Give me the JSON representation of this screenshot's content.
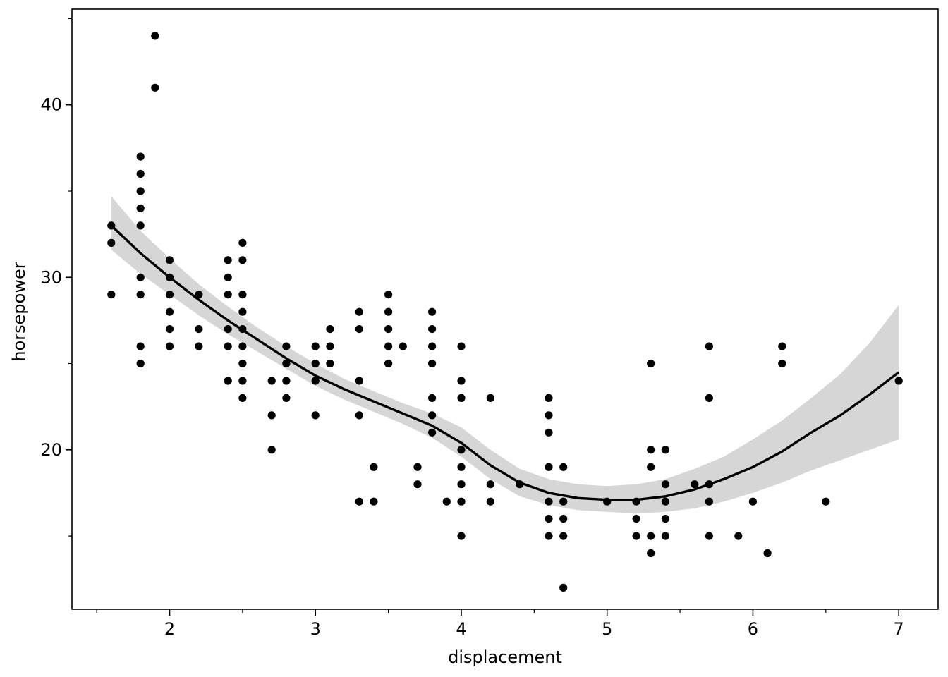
{
  "chart_data": {
    "type": "scatter",
    "title": "",
    "xlabel": "displacement",
    "ylabel": "horsepower",
    "xlim": [
      1.33,
      7.27
    ],
    "ylim": [
      10.75,
      45.55
    ],
    "x_ticks": [
      2,
      3,
      4,
      5,
      6,
      7
    ],
    "y_ticks": [
      20,
      30,
      40
    ],
    "x_minor_ticks": [
      1.5,
      2.5,
      3.5,
      4.5,
      5.5,
      6.5
    ],
    "y_minor_ticks": [
      15,
      25,
      35,
      45
    ],
    "grid": false,
    "legend": "none",
    "colors": {
      "points": "#000000",
      "line": "#000000",
      "band": "#d6d6d6"
    },
    "points": [
      [
        1.6,
        33
      ],
      [
        1.6,
        32
      ],
      [
        1.6,
        29
      ],
      [
        1.8,
        37
      ],
      [
        1.8,
        36
      ],
      [
        1.8,
        35
      ],
      [
        1.8,
        34
      ],
      [
        1.8,
        33
      ],
      [
        1.8,
        30
      ],
      [
        1.8,
        29
      ],
      [
        1.8,
        26
      ],
      [
        1.8,
        25
      ],
      [
        1.9,
        44
      ],
      [
        1.9,
        41
      ],
      [
        2.0,
        31
      ],
      [
        2.0,
        30
      ],
      [
        2.0,
        29
      ],
      [
        2.0,
        28
      ],
      [
        2.0,
        27
      ],
      [
        2.0,
        26
      ],
      [
        2.2,
        29
      ],
      [
        2.2,
        27
      ],
      [
        2.2,
        26
      ],
      [
        2.4,
        31
      ],
      [
        2.4,
        30
      ],
      [
        2.4,
        29
      ],
      [
        2.4,
        27
      ],
      [
        2.4,
        26
      ],
      [
        2.4,
        24
      ],
      [
        2.5,
        32
      ],
      [
        2.5,
        31
      ],
      [
        2.5,
        29
      ],
      [
        2.5,
        28
      ],
      [
        2.5,
        27
      ],
      [
        2.5,
        26
      ],
      [
        2.5,
        25
      ],
      [
        2.5,
        24
      ],
      [
        2.5,
        23
      ],
      [
        2.7,
        24
      ],
      [
        2.7,
        22
      ],
      [
        2.7,
        20
      ],
      [
        2.8,
        26
      ],
      [
        2.8,
        25
      ],
      [
        2.8,
        24
      ],
      [
        2.8,
        23
      ],
      [
        3.0,
        26
      ],
      [
        3.0,
        25
      ],
      [
        3.0,
        24
      ],
      [
        3.0,
        22
      ],
      [
        3.1,
        27
      ],
      [
        3.1,
        26
      ],
      [
        3.1,
        25
      ],
      [
        3.3,
        28
      ],
      [
        3.3,
        27
      ],
      [
        3.3,
        24
      ],
      [
        3.3,
        22
      ],
      [
        3.3,
        17
      ],
      [
        3.4,
        19
      ],
      [
        3.4,
        17
      ],
      [
        3.5,
        29
      ],
      [
        3.5,
        28
      ],
      [
        3.5,
        27
      ],
      [
        3.5,
        26
      ],
      [
        3.5,
        25
      ],
      [
        3.6,
        26
      ],
      [
        3.7,
        19
      ],
      [
        3.7,
        18
      ],
      [
        3.8,
        28
      ],
      [
        3.8,
        27
      ],
      [
        3.8,
        26
      ],
      [
        3.8,
        25
      ],
      [
        3.8,
        23
      ],
      [
        3.8,
        22
      ],
      [
        3.8,
        21
      ],
      [
        3.9,
        17
      ],
      [
        4.0,
        26
      ],
      [
        4.0,
        24
      ],
      [
        4.0,
        23
      ],
      [
        4.0,
        20
      ],
      [
        4.0,
        19
      ],
      [
        4.0,
        18
      ],
      [
        4.0,
        17
      ],
      [
        4.0,
        15
      ],
      [
        4.2,
        23
      ],
      [
        4.2,
        18
      ],
      [
        4.2,
        17
      ],
      [
        4.4,
        18
      ],
      [
        4.6,
        23
      ],
      [
        4.6,
        22
      ],
      [
        4.6,
        21
      ],
      [
        4.6,
        19
      ],
      [
        4.6,
        17
      ],
      [
        4.6,
        16
      ],
      [
        4.6,
        15
      ],
      [
        4.7,
        19
      ],
      [
        4.7,
        17
      ],
      [
        4.7,
        16
      ],
      [
        4.7,
        15
      ],
      [
        4.7,
        12
      ],
      [
        5.0,
        17
      ],
      [
        5.2,
        17
      ],
      [
        5.2,
        16
      ],
      [
        5.2,
        15
      ],
      [
        5.3,
        25
      ],
      [
        5.3,
        20
      ],
      [
        5.3,
        19
      ],
      [
        5.3,
        15
      ],
      [
        5.3,
        14
      ],
      [
        5.4,
        20
      ],
      [
        5.4,
        18
      ],
      [
        5.4,
        17
      ],
      [
        5.4,
        16
      ],
      [
        5.4,
        15
      ],
      [
        5.6,
        18
      ],
      [
        5.7,
        26
      ],
      [
        5.7,
        23
      ],
      [
        5.7,
        18
      ],
      [
        5.7,
        17
      ],
      [
        5.7,
        15
      ],
      [
        5.9,
        15
      ],
      [
        6.0,
        17
      ],
      [
        6.1,
        14
      ],
      [
        6.2,
        26
      ],
      [
        6.2,
        25
      ],
      [
        6.5,
        17
      ],
      [
        7.0,
        24
      ]
    ],
    "smooth_curve": [
      [
        1.6,
        33.0
      ],
      [
        1.8,
        31.4
      ],
      [
        2.0,
        30.0
      ],
      [
        2.2,
        28.7
      ],
      [
        2.4,
        27.5
      ],
      [
        2.6,
        26.4
      ],
      [
        2.8,
        25.3
      ],
      [
        3.0,
        24.3
      ],
      [
        3.2,
        23.5
      ],
      [
        3.4,
        22.8
      ],
      [
        3.6,
        22.1
      ],
      [
        3.8,
        21.4
      ],
      [
        4.0,
        20.4
      ],
      [
        4.2,
        19.1
      ],
      [
        4.4,
        18.1
      ],
      [
        4.6,
        17.5
      ],
      [
        4.8,
        17.2
      ],
      [
        5.0,
        17.1
      ],
      [
        5.2,
        17.1
      ],
      [
        5.4,
        17.3
      ],
      [
        5.6,
        17.7
      ],
      [
        5.8,
        18.3
      ],
      [
        6.0,
        19.0
      ],
      [
        6.2,
        19.9
      ],
      [
        6.4,
        21.0
      ],
      [
        6.6,
        22.0
      ],
      [
        6.8,
        23.2
      ],
      [
        7.0,
        24.5
      ]
    ],
    "confidence_band": {
      "upper": [
        [
          1.6,
          34.7
        ],
        [
          1.8,
          32.7
        ],
        [
          2.0,
          31.1
        ],
        [
          2.2,
          29.6
        ],
        [
          2.4,
          28.3
        ],
        [
          2.6,
          27.1
        ],
        [
          2.8,
          26.0
        ],
        [
          3.0,
          25.0
        ],
        [
          3.2,
          24.1
        ],
        [
          3.4,
          23.4
        ],
        [
          3.6,
          22.7
        ],
        [
          3.8,
          22.1
        ],
        [
          4.0,
          21.3
        ],
        [
          4.2,
          20.0
        ],
        [
          4.4,
          18.9
        ],
        [
          4.6,
          18.3
        ],
        [
          4.8,
          18.0
        ],
        [
          5.0,
          17.9
        ],
        [
          5.2,
          18.0
        ],
        [
          5.4,
          18.3
        ],
        [
          5.6,
          18.9
        ],
        [
          5.8,
          19.6
        ],
        [
          6.0,
          20.6
        ],
        [
          6.2,
          21.7
        ],
        [
          6.4,
          23.0
        ],
        [
          6.6,
          24.4
        ],
        [
          6.8,
          26.2
        ],
        [
          7.0,
          28.4
        ]
      ],
      "lower": [
        [
          1.6,
          31.6
        ],
        [
          1.8,
          30.2
        ],
        [
          2.0,
          29.0
        ],
        [
          2.2,
          27.8
        ],
        [
          2.4,
          26.7
        ],
        [
          2.6,
          25.7
        ],
        [
          2.8,
          24.7
        ],
        [
          3.0,
          23.7
        ],
        [
          3.2,
          22.9
        ],
        [
          3.4,
          22.2
        ],
        [
          3.6,
          21.5
        ],
        [
          3.8,
          20.7
        ],
        [
          4.0,
          19.6
        ],
        [
          4.2,
          18.3
        ],
        [
          4.4,
          17.3
        ],
        [
          4.6,
          16.8
        ],
        [
          4.8,
          16.5
        ],
        [
          5.0,
          16.4
        ],
        [
          5.2,
          16.3
        ],
        [
          5.4,
          16.4
        ],
        [
          5.6,
          16.6
        ],
        [
          5.8,
          17.0
        ],
        [
          6.0,
          17.5
        ],
        [
          6.2,
          18.1
        ],
        [
          6.4,
          18.8
        ],
        [
          6.6,
          19.4
        ],
        [
          6.8,
          20.0
        ],
        [
          7.0,
          20.6
        ]
      ]
    }
  }
}
